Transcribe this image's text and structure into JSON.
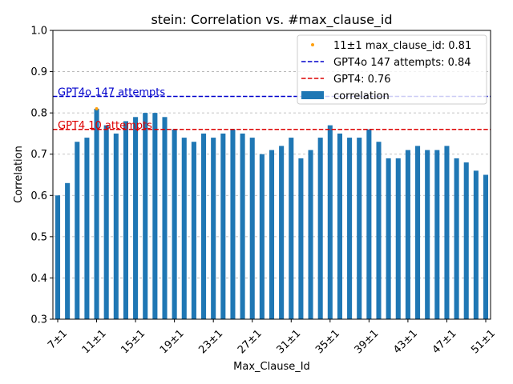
{
  "chart_data": {
    "type": "bar",
    "title": "stein: Correlation vs. #max_clause_id",
    "xlabel": "Max_Clause_Id",
    "ylabel": "Correlation",
    "ylim": [
      0.3,
      1.0
    ],
    "yticks": [
      "0.3",
      "0.4",
      "0.5",
      "0.6",
      "0.7",
      "0.8",
      "0.9",
      "1.0"
    ],
    "grid": "y-dashed",
    "legend_position": "top-right",
    "categories": [
      "7±1",
      "8±1",
      "9±1",
      "10±1",
      "11±1",
      "12±1",
      "13±1",
      "14±1",
      "15±1",
      "16±1",
      "17±1",
      "18±1",
      "19±1",
      "20±1",
      "21±1",
      "22±1",
      "23±1",
      "24±1",
      "25±1",
      "26±1",
      "27±1",
      "28±1",
      "29±1",
      "30±1",
      "31±1",
      "32±1",
      "33±1",
      "34±1",
      "35±1",
      "36±1",
      "37±1",
      "38±1",
      "39±1",
      "40±1",
      "41±1",
      "42±1",
      "43±1",
      "44±1",
      "45±1",
      "46±1",
      "47±1",
      "48±1",
      "49±1",
      "50±1",
      "51±1"
    ],
    "tick_label_categories": [
      "7±1",
      "11±1",
      "15±1",
      "19±1",
      "23±1",
      "27±1",
      "31±1",
      "35±1",
      "39±1",
      "43±1",
      "47±1",
      "51±1"
    ],
    "series": [
      {
        "name": "correlation",
        "color": "#1f77b4",
        "values": [
          0.6,
          0.63,
          0.73,
          0.74,
          0.81,
          0.77,
          0.75,
          0.78,
          0.79,
          0.8,
          0.8,
          0.79,
          0.76,
          0.74,
          0.73,
          0.75,
          0.74,
          0.75,
          0.76,
          0.75,
          0.74,
          0.7,
          0.71,
          0.72,
          0.74,
          0.69,
          0.71,
          0.74,
          0.77,
          0.75,
          0.74,
          0.74,
          0.76,
          0.73,
          0.69,
          0.69,
          0.71,
          0.72,
          0.71,
          0.71,
          0.72,
          0.69,
          0.68,
          0.66,
          0.65
        ]
      }
    ],
    "highlight_point": {
      "label": "11±1 max_clause_id: 0.81",
      "category": "11±1",
      "value": 0.81,
      "color": "#ff9f0e"
    },
    "reference_lines": [
      {
        "legend_label": "GPT4o 147 attempts: 0.84",
        "value": 0.84,
        "color": "#0000cc",
        "annotation": "GPT4o 147 attempts"
      },
      {
        "legend_label": "GPT4: 0.76",
        "value": 0.76,
        "color": "#dd0000",
        "annotation": "GPT4 10 attempts"
      }
    ]
  }
}
